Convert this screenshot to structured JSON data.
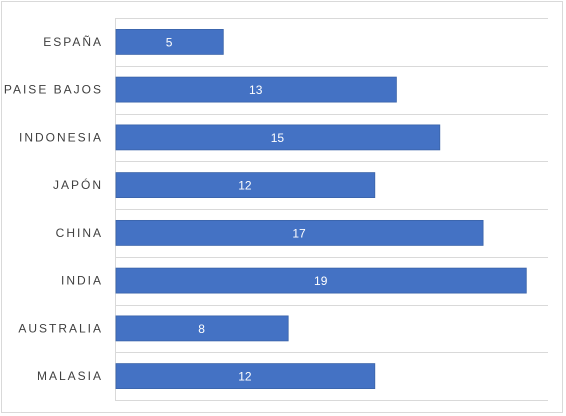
{
  "chart_data": {
    "type": "bar",
    "orientation": "horizontal",
    "categories": [
      "ESPAÑA",
      "PAISE BAJOS",
      "INDONESIA",
      "JAPÓN",
      "CHINA",
      "INDIA",
      "AUSTRALIA",
      "MALASIA"
    ],
    "values": [
      5,
      13,
      15,
      12,
      17,
      19,
      8,
      12
    ],
    "title": "",
    "xlabel": "",
    "ylabel": "",
    "xlim": [
      0,
      20
    ],
    "data_labels": true,
    "grid": true,
    "legend": "none",
    "colors": {
      "bar": "#4472C4",
      "bar_border": "#3A63A8",
      "gridline": "#D9D9D9",
      "label_text": "#404040",
      "value_text": "#FFFFFF"
    }
  }
}
